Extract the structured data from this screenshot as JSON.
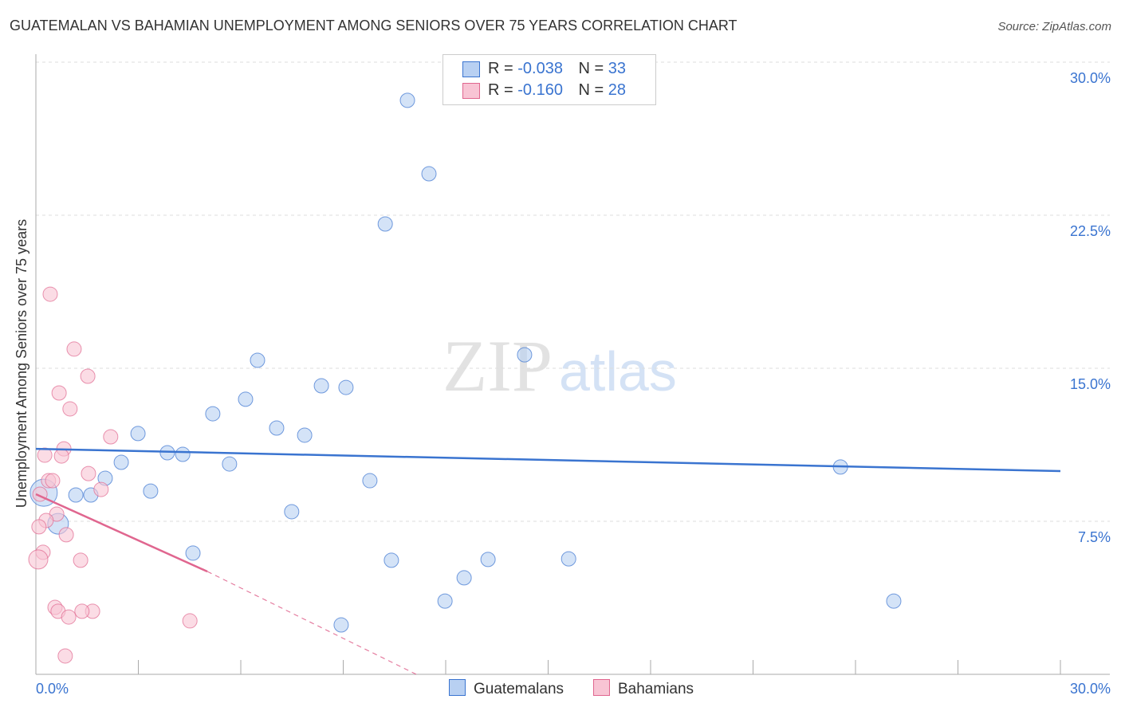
{
  "title": "GUATEMALAN VS BAHAMIAN UNEMPLOYMENT AMONG SENIORS OVER 75 YEARS CORRELATION CHART",
  "source": "Source: ZipAtlas.com",
  "watermark": "ZIPatlas",
  "legend": {
    "rows": [
      {
        "r_label": "R = ",
        "r": "-0.038",
        "n_label": "N = ",
        "n": "33"
      },
      {
        "r_label": "R = ",
        "r": "-0.160",
        "n_label": "N = ",
        "n": "28"
      }
    ]
  },
  "colors": {
    "guatemalans": "#3a74d0",
    "guatemalans_fill": "#b8d0f2",
    "bahamians": "#e0668f",
    "bahamians_fill": "#f8c4d4"
  },
  "chart_data": {
    "type": "scatter",
    "title": "GUATEMALAN VS BAHAMIAN UNEMPLOYMENT AMONG SENIORS OVER 75 YEARS CORRELATION CHART",
    "xlabel": "",
    "ylabel": "Unemployment Among Seniors over 75 years",
    "xlim": [
      0,
      30
    ],
    "ylim": [
      0,
      30
    ],
    "x_tick_labels": [
      "0.0%",
      "30.0%"
    ],
    "y_tick_labels": [
      "30.0%",
      "22.5%",
      "15.0%",
      "7.5%"
    ],
    "y_ticks": [
      30,
      22.5,
      15,
      7.5
    ],
    "grid": true,
    "legend_position": "bottom",
    "series": [
      {
        "name": "Guatemalans",
        "points": [
          [
            10.88,
            28.13
          ],
          [
            11.51,
            24.53
          ],
          [
            10.23,
            22.07
          ],
          [
            14.31,
            15.66
          ],
          [
            6.49,
            15.39
          ],
          [
            8.36,
            14.14
          ],
          [
            9.08,
            14.06
          ],
          [
            6.14,
            13.48
          ],
          [
            5.18,
            12.77
          ],
          [
            7.05,
            12.07
          ],
          [
            7.87,
            11.72
          ],
          [
            2.99,
            11.8
          ],
          [
            3.85,
            10.86
          ],
          [
            4.3,
            10.78
          ],
          [
            2.5,
            10.39
          ],
          [
            5.67,
            10.31
          ],
          [
            2.03,
            9.61
          ],
          [
            9.78,
            9.49
          ],
          [
            23.56,
            10.16
          ],
          [
            3.36,
            8.98
          ],
          [
            1.17,
            8.79
          ],
          [
            1.61,
            8.79
          ],
          [
            0.23,
            8.9
          ],
          [
            0.65,
            7.38
          ],
          [
            7.49,
            7.97
          ],
          [
            4.6,
            5.94
          ],
          [
            10.41,
            5.59
          ],
          [
            13.24,
            5.63
          ],
          [
            15.6,
            5.66
          ],
          [
            12.54,
            4.73
          ],
          [
            11.98,
            3.59
          ],
          [
            8.94,
            2.42
          ],
          [
            25.12,
            3.59
          ]
        ],
        "trend": {
          "x": [
            0,
            30
          ],
          "y": [
            11.05,
            9.96
          ]
        }
      },
      {
        "name": "Bahamians",
        "points": [
          [
            0.42,
            18.63
          ],
          [
            1.12,
            15.94
          ],
          [
            1.52,
            14.61
          ],
          [
            0.68,
            13.79
          ],
          [
            1.0,
            13.01
          ],
          [
            2.19,
            11.64
          ],
          [
            0.82,
            11.05
          ],
          [
            0.26,
            10.74
          ],
          [
            0.75,
            10.7
          ],
          [
            1.54,
            9.84
          ],
          [
            0.37,
            9.49
          ],
          [
            0.49,
            9.49
          ],
          [
            1.91,
            9.06
          ],
          [
            0.12,
            8.83
          ],
          [
            0.61,
            7.85
          ],
          [
            0.3,
            7.54
          ],
          [
            0.09,
            7.23
          ],
          [
            0.89,
            6.84
          ],
          [
            0.21,
            5.98
          ],
          [
            0.07,
            5.63
          ],
          [
            1.31,
            5.59
          ],
          [
            0.56,
            3.28
          ],
          [
            0.65,
            3.09
          ],
          [
            1.66,
            3.09
          ],
          [
            1.35,
            3.09
          ],
          [
            0.96,
            2.81
          ],
          [
            4.51,
            2.62
          ],
          [
            0.86,
            0.9
          ]
        ],
        "trend": {
          "x": [
            0,
            5.02
          ],
          "y": [
            8.83,
            5.04
          ]
        },
        "trend_dashed": {
          "x": [
            5.02,
            11.14
          ],
          "y": [
            5.04,
            0
          ]
        }
      }
    ]
  }
}
